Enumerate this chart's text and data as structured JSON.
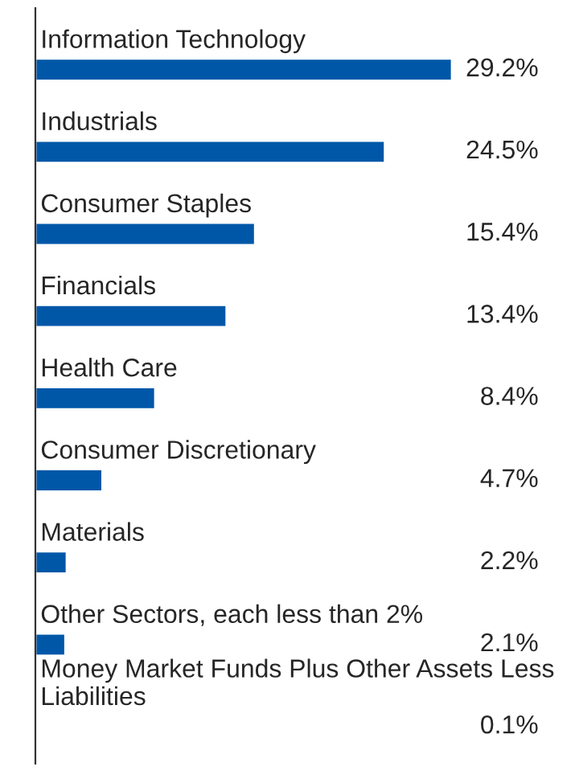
{
  "chart_data": {
    "type": "bar",
    "orientation": "horizontal",
    "categories": [
      "Information Technology",
      "Industrials",
      "Consumer Staples",
      "Financials",
      "Health Care",
      "Consumer Discretionary",
      "Materials",
      "Other Sectors, each less than 2%",
      "Money Market Funds Plus Other Assets Less Liabilities"
    ],
    "values": [
      29.2,
      24.5,
      15.4,
      13.4,
      8.4,
      4.7,
      2.2,
      2.1,
      0.1
    ],
    "value_labels": [
      "29.2%",
      "24.5%",
      "15.4%",
      "13.4%",
      "8.4%",
      "4.7%",
      "2.2%",
      "2.1%",
      "0.1%"
    ],
    "color": "#0057a8"
  }
}
